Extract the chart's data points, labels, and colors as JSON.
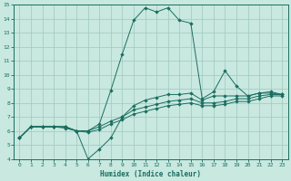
{
  "xlabel": "Humidex (Indice chaleur)",
  "bg_color": "#c8e8e0",
  "grid_color": "#9fc8c0",
  "line_color": "#1a6e60",
  "xlim": [
    -0.5,
    23.5
  ],
  "ylim": [
    4,
    15
  ],
  "xticks": [
    0,
    1,
    2,
    3,
    4,
    5,
    6,
    7,
    8,
    9,
    10,
    11,
    12,
    13,
    14,
    15,
    16,
    17,
    18,
    19,
    20,
    21,
    22,
    23
  ],
  "yticks": [
    4,
    5,
    6,
    7,
    8,
    9,
    10,
    11,
    12,
    13,
    14,
    15
  ],
  "lines": [
    {
      "x": [
        0,
        1,
        2,
        3,
        4,
        5,
        6,
        7,
        8,
        9,
        10,
        11,
        12,
        13,
        14,
        15,
        16,
        17,
        18,
        19,
        20,
        21,
        22,
        23
      ],
      "y": [
        5.5,
        6.3,
        6.3,
        6.3,
        6.3,
        6.0,
        6.0,
        6.5,
        8.9,
        11.5,
        13.9,
        14.8,
        14.5,
        14.8,
        13.9,
        13.7,
        8.3,
        8.8,
        10.3,
        9.2,
        8.5,
        8.7,
        8.7,
        8.6
      ]
    },
    {
      "x": [
        0,
        1,
        2,
        3,
        4,
        5,
        6,
        7,
        8,
        9,
        10,
        11,
        12,
        13,
        14,
        15,
        16,
        17,
        18,
        19,
        20,
        21,
        22,
        23
      ],
      "y": [
        5.5,
        6.3,
        6.3,
        6.3,
        6.3,
        6.0,
        4.0,
        4.7,
        5.5,
        7.0,
        7.8,
        8.2,
        8.4,
        8.6,
        8.6,
        8.7,
        8.2,
        8.5,
        8.5,
        8.5,
        8.5,
        8.7,
        8.8,
        8.6
      ]
    },
    {
      "x": [
        0,
        1,
        2,
        3,
        4,
        5,
        6,
        7,
        8,
        9,
        10,
        11,
        12,
        13,
        14,
        15,
        16,
        17,
        18,
        19,
        20,
        21,
        22,
        23
      ],
      "y": [
        5.5,
        6.3,
        6.3,
        6.3,
        6.3,
        6.0,
        6.0,
        6.3,
        6.7,
        7.0,
        7.5,
        7.7,
        7.9,
        8.1,
        8.2,
        8.3,
        8.0,
        8.0,
        8.1,
        8.3,
        8.3,
        8.5,
        8.6,
        8.6
      ]
    },
    {
      "x": [
        0,
        1,
        2,
        3,
        4,
        5,
        6,
        7,
        8,
        9,
        10,
        11,
        12,
        13,
        14,
        15,
        16,
        17,
        18,
        19,
        20,
        21,
        22,
        23
      ],
      "y": [
        5.5,
        6.3,
        6.3,
        6.3,
        6.2,
        6.0,
        5.9,
        6.1,
        6.5,
        6.8,
        7.2,
        7.4,
        7.6,
        7.8,
        7.9,
        8.0,
        7.8,
        7.8,
        7.9,
        8.1,
        8.1,
        8.3,
        8.5,
        8.5
      ]
    }
  ]
}
